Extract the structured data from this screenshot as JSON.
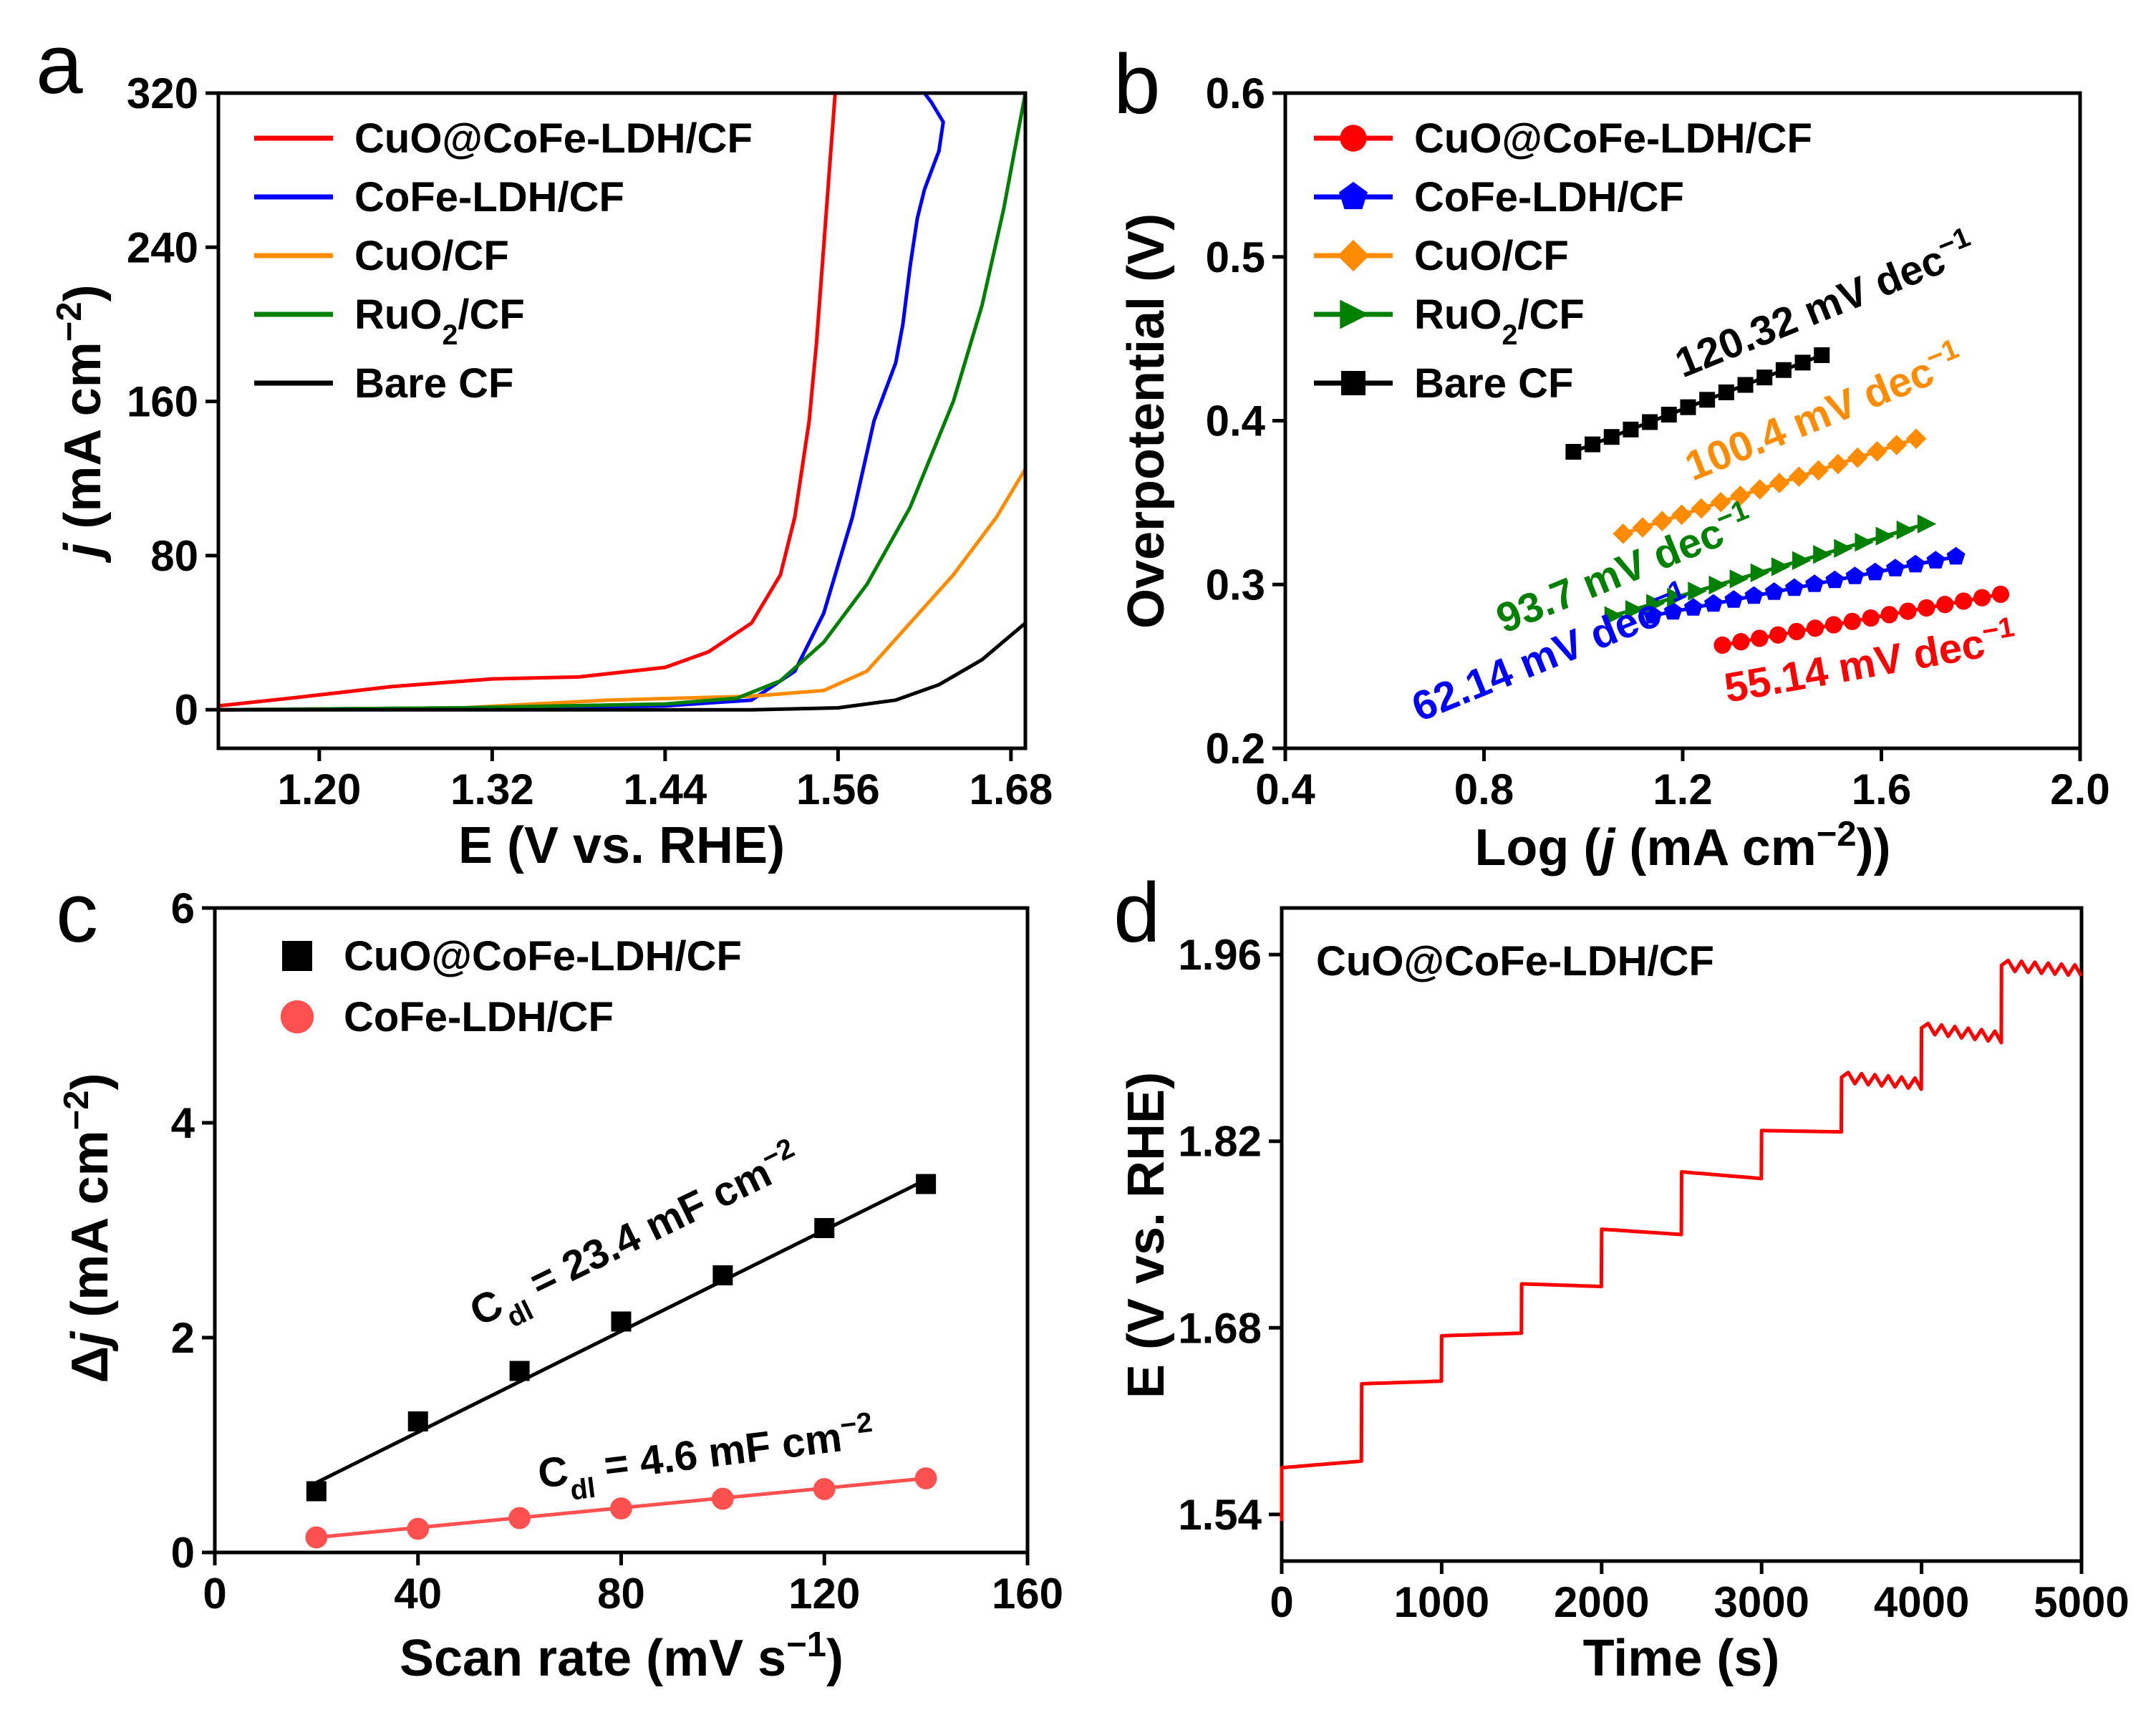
{
  "figure": {
    "panels": [
      "a",
      "b",
      "c",
      "d"
    ]
  },
  "chart_data": [
    {
      "panel": "a",
      "type": "line",
      "xlabel": "E (V vs. RHE)",
      "ylabel_parts": [
        "j",
        " (mA cm",
        "−2",
        ")"
      ],
      "xlim": [
        1.13,
        1.69
      ],
      "ylim": [
        -20,
        320
      ],
      "x_ticks": [
        "1.20",
        "1.32",
        "1.44",
        "1.56",
        "1.68"
      ],
      "x_tick_values": [
        1.2,
        1.32,
        1.44,
        1.56,
        1.68
      ],
      "y_ticks": [
        "0",
        "80",
        "160",
        "240",
        "320"
      ],
      "y_tick_values": [
        0,
        80,
        160,
        240,
        320
      ],
      "legend_position": "top-left",
      "series": [
        {
          "name_parts": [
            "CuO@CoFe-LDH/CF"
          ],
          "color": "#ff0000",
          "x": [
            1.13,
            1.18,
            1.25,
            1.32,
            1.38,
            1.44,
            1.47,
            1.5,
            1.52,
            1.53,
            1.54,
            1.545,
            1.55,
            1.555,
            1.558
          ],
          "y": [
            2,
            6,
            12,
            16,
            17,
            22,
            30,
            45,
            70,
            100,
            150,
            190,
            240,
            290,
            320
          ]
        },
        {
          "name_parts": [
            "CoFe-LDH/CF"
          ],
          "color": "#0000ff",
          "x": [
            1.13,
            1.3,
            1.44,
            1.5,
            1.53,
            1.55,
            1.57,
            1.585,
            1.6,
            1.605,
            1.61,
            1.615,
            1.62,
            1.625,
            1.63,
            1.633,
            1.625,
            1.62
          ],
          "y": [
            0,
            1,
            2,
            5,
            20,
            50,
            100,
            150,
            180,
            200,
            230,
            255,
            270,
            280,
            290,
            305,
            315,
            320
          ]
        },
        {
          "name_parts": [
            "CuO/CF"
          ],
          "color": "#ff8c00",
          "x": [
            1.13,
            1.3,
            1.4,
            1.45,
            1.5,
            1.55,
            1.58,
            1.61,
            1.64,
            1.67,
            1.69
          ],
          "y": [
            0,
            1,
            5,
            6,
            7,
            10,
            20,
            45,
            70,
            100,
            125
          ]
        },
        {
          "name_parts": [
            "RuO",
            "2",
            "/CF"
          ],
          "color": "#008000",
          "x": [
            1.13,
            1.3,
            1.44,
            1.49,
            1.52,
            1.55,
            1.58,
            1.61,
            1.64,
            1.66,
            1.675,
            1.685,
            1.69
          ],
          "y": [
            0,
            1,
            3,
            6,
            15,
            35,
            65,
            105,
            160,
            210,
            260,
            300,
            320
          ]
        },
        {
          "name_parts": [
            "Bare CF"
          ],
          "color": "#000000",
          "x": [
            1.13,
            1.4,
            1.5,
            1.56,
            1.6,
            1.63,
            1.66,
            1.69
          ],
          "y": [
            0,
            0,
            0,
            1,
            5,
            13,
            26,
            45
          ]
        }
      ]
    },
    {
      "panel": "b",
      "type": "scatter",
      "xlabel_parts": [
        "Log (",
        "j",
        " (mA cm",
        "−2",
        "))"
      ],
      "ylabel": "Overpotential (V)",
      "xlim": [
        0.4,
        2.0
      ],
      "ylim": [
        0.2,
        0.6
      ],
      "x_ticks": [
        "0.4",
        "0.8",
        "1.2",
        "1.6",
        "2.0"
      ],
      "x_tick_values": [
        0.4,
        0.8,
        1.2,
        1.6,
        2.0
      ],
      "y_ticks": [
        "0.2",
        "0.3",
        "0.4",
        "0.5",
        "0.6"
      ],
      "y_tick_values": [
        0.2,
        0.3,
        0.4,
        0.5,
        0.6
      ],
      "legend_position": "top-left",
      "series": [
        {
          "name_parts": [
            "CuO@CoFe-LDH/CF"
          ],
          "color": "#ff0000",
          "marker": "circle",
          "x_range": [
            1.28,
            1.84
          ],
          "y_range": [
            0.263,
            0.294
          ],
          "n": 16
        },
        {
          "name_parts": [
            "CoFe-LDH/CF"
          ],
          "color": "#0000ff",
          "marker": "pentagon",
          "x_range": [
            1.14,
            1.75
          ],
          "y_range": [
            0.281,
            0.317
          ],
          "n": 16
        },
        {
          "name_parts": [
            "CuO/CF"
          ],
          "color": "#ff8c00",
          "marker": "diamond",
          "x_range": [
            1.08,
            1.67
          ],
          "y_range": [
            0.331,
            0.389
          ],
          "n": 16
        },
        {
          "name_parts": [
            "RuO",
            "2",
            "/CF"
          ],
          "color": "#008000",
          "marker": "triangle-right",
          "x_range": [
            1.06,
            1.69
          ],
          "y_range": [
            0.281,
            0.337
          ],
          "n": 16
        },
        {
          "name_parts": [
            "Bare CF"
          ],
          "color": "#000000",
          "marker": "square",
          "x_range": [
            0.98,
            1.48
          ],
          "y_range": [
            0.381,
            0.44
          ],
          "n": 14
        }
      ],
      "annotations": [
        {
          "text": "120.32 mV dec",
          "sup": "−1",
          "color": "#000000",
          "x": 1.2,
          "y": 0.426,
          "rotate": -22
        },
        {
          "text": "100.4 mV dec",
          "sup": "−1",
          "color": "#ff8c00",
          "x": 1.22,
          "y": 0.363,
          "rotate": -22
        },
        {
          "text": "93.7 mV dec",
          "sup": "−1",
          "color": "#008000",
          "x": 0.84,
          "y": 0.27,
          "rotate": -22
        },
        {
          "text": "62.14 mV dec",
          "sup": "−1",
          "color": "#0000ff",
          "x": 0.67,
          "y": 0.216,
          "rotate": -22
        },
        {
          "text": "55.14 mV dec",
          "sup": "−1",
          "color": "#ff0000",
          "x": 1.29,
          "y": 0.228,
          "rotate": -10
        }
      ]
    },
    {
      "panel": "c",
      "type": "scatter",
      "xlabel_parts": [
        "Scan rate (mV s",
        "−1",
        ")"
      ],
      "ylabel_parts": [
        "Δ",
        "j",
        " (mA cm",
        "−2",
        ")"
      ],
      "xlim": [
        0,
        160
      ],
      "ylim": [
        0,
        6
      ],
      "x_ticks": [
        "0",
        "40",
        "80",
        "120",
        "160"
      ],
      "x_tick_values": [
        0,
        40,
        80,
        120,
        160
      ],
      "y_ticks": [
        "0",
        "2",
        "4",
        "6"
      ],
      "y_tick_values": [
        0,
        2,
        4,
        6
      ],
      "legend_position": "top-left",
      "series": [
        {
          "name_parts": [
            "CuO@CoFe-LDH/CF"
          ],
          "color": "#000000",
          "marker": "square",
          "x": [
            20,
            40,
            60,
            80,
            100,
            120,
            140
          ],
          "y": [
            0.57,
            1.22,
            1.69,
            2.15,
            2.58,
            3.02,
            3.43
          ],
          "fit": [
            0.65,
            3.47
          ]
        },
        {
          "name_parts": [
            "CoFe-LDH/CF"
          ],
          "color": "#ff5050",
          "marker": "circle",
          "x": [
            20,
            40,
            60,
            80,
            100,
            120,
            140
          ],
          "y": [
            0.14,
            0.22,
            0.32,
            0.41,
            0.5,
            0.59,
            0.69
          ],
          "fit": [
            0.14,
            0.69
          ]
        }
      ],
      "annotations": [
        {
          "label": "C",
          "sub": "dl",
          "value": " = 23.4 mF cm",
          "sup": "−2",
          "x": 52,
          "y": 2.1,
          "rotate": -26
        },
        {
          "label": "C",
          "sub": "dl",
          "value": " = 4.6 mF cm",
          "sup": "−2",
          "x": 64,
          "y": 0.6,
          "rotate": -7
        }
      ]
    },
    {
      "panel": "d",
      "type": "line",
      "xlabel": "Time (s)",
      "ylabel": "E (V vs. RHE)",
      "title": "CuO@CoFe-LDH/CF",
      "xlim": [
        0,
        5000
      ],
      "ylim": [
        1.505,
        1.995
      ],
      "x_ticks": [
        "0",
        "1000",
        "2000",
        "3000",
        "4000",
        "5000"
      ],
      "x_tick_values": [
        0,
        1000,
        2000,
        3000,
        4000,
        5000
      ],
      "y_ticks": [
        "1.54",
        "1.68",
        "1.82",
        "1.96"
      ],
      "y_tick_values": [
        1.54,
        1.68,
        1.82,
        1.96
      ],
      "series": [
        {
          "name": "CuO@CoFe-LDH/CF",
          "color": "#ff0000",
          "step_width_s": 500,
          "step_start_values": [
            1.575,
            1.638,
            1.674,
            1.713,
            1.754,
            1.797,
            1.828,
            1.868,
            1.905,
            1.952
          ],
          "step_end_values": [
            1.58,
            1.64,
            1.676,
            1.711,
            1.75,
            1.792,
            1.827,
            1.863,
            1.898,
            1.948
          ]
        }
      ]
    }
  ]
}
